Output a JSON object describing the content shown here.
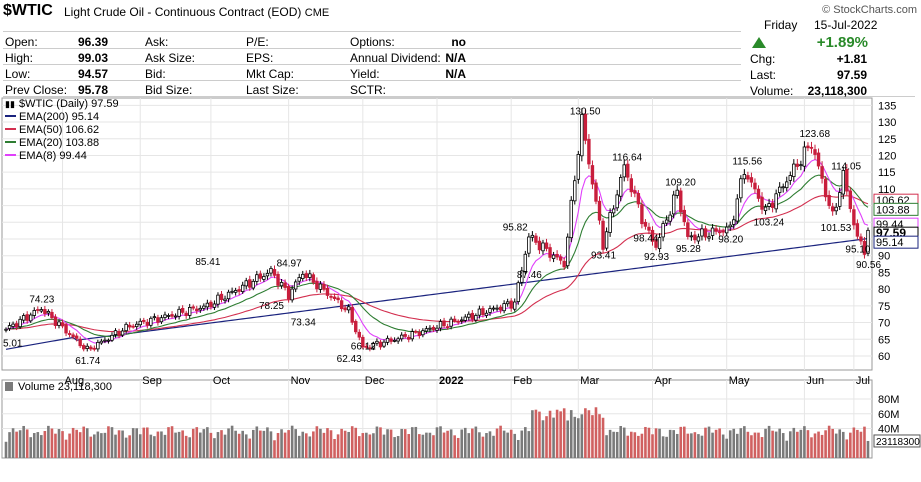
{
  "header": {
    "symbol": "$WTIC",
    "name": "Light Crude Oil - Continuous Contract (EOD)",
    "exchange": "CME",
    "source": "© StockCharts.com",
    "day": "Friday",
    "date": "15-Jul-2022",
    "change_pct": "+1.89%",
    "chg_label": "Chg:",
    "chg_value": "+1.81",
    "last_label": "Last:",
    "last_value": "97.59",
    "volume_label": "Volume:",
    "volume_value": "23,118,300"
  },
  "quote": {
    "open_label": "Open:",
    "open": "96.39",
    "high_label": "High:",
    "high": "99.03",
    "low_label": "Low:",
    "low": "94.57",
    "prev_label": "Prev Close:",
    "prev": "95.78",
    "ask_label": "Ask:",
    "ask": "",
    "asksize_label": "Ask Size:",
    "asksize": "",
    "bid_label": "Bid:",
    "bid": "",
    "bidsize_label": "Bid Size:",
    "bidsize": "",
    "pe_label": "P/E:",
    "eps_label": "EPS:",
    "mktcap_label": "Mkt Cap:",
    "lastsize_label": "Last Size:",
    "options_label": "Options:",
    "options": "no",
    "div_label": "Annual Dividend:",
    "div": "N/A",
    "yield_label": "Yield:",
    "yield": "N/A",
    "sctr_label": "SCTR:",
    "sctr": ""
  },
  "colors": {
    "up": "#2a8a2a",
    "down": "#c81e3c",
    "ema200": "#1a237e",
    "ema50": "#d32f4f",
    "ema20": "#2e7d32",
    "ema8": "#e040fb",
    "volume_up": "#7a7a7a",
    "volume_down": "#d06060"
  },
  "chart_data": [
    {
      "type": "line",
      "legend": [
        {
          "text": "$WTIC (Daily) 97.59",
          "key": "price"
        },
        {
          "text": "EMA(200) 95.14",
          "key": "ema200"
        },
        {
          "text": "EMA(50) 106.62",
          "key": "ema50"
        },
        {
          "text": "EMA(20) 103.88",
          "key": "ema20"
        },
        {
          "text": "EMA(8) 99.44",
          "key": "ema8"
        }
      ],
      "x_ticks": [
        "Aug",
        "Sep",
        "Oct",
        "Nov",
        "Dec",
        "2022",
        "Feb",
        "Mar",
        "Apr",
        "May",
        "Jun",
        "Jul"
      ],
      "y_ticks": [
        60,
        65,
        70,
        75,
        80,
        85,
        90,
        95,
        100,
        105,
        110,
        115,
        120,
        125,
        130,
        135
      ],
      "ylim": [
        57,
        136
      ],
      "grid": true,
      "price_key_points": [
        [
          "start",
          68
        ],
        [
          "Aug-01",
          74.23
        ],
        [
          "Aug-19",
          61.74
        ],
        [
          "Sep-01",
          69
        ],
        [
          "Oct-01",
          75
        ],
        [
          "Oct-25",
          85.41
        ],
        [
          "Nov-02",
          78.25
        ],
        [
          "Nov-09",
          84.97
        ],
        [
          "Nov-25",
          73.34
        ],
        [
          "Dec-01",
          62.43
        ],
        [
          "Dec-20",
          66.12
        ],
        [
          "Jan-01",
          76
        ],
        [
          "Feb-14",
          95.82
        ],
        [
          "Feb-20",
          87.46
        ],
        [
          "Mar-07",
          130.5
        ],
        [
          "Mar-15",
          93.41
        ],
        [
          "Mar-23",
          116.64
        ],
        [
          "Apr-01",
          98.44
        ],
        [
          "Apr-11",
          92.93
        ],
        [
          "Apr-18",
          109.2
        ],
        [
          "Apr-25",
          95.28
        ],
        [
          "May-10",
          98.2
        ],
        [
          "May-17",
          115.56
        ],
        [
          "May-25",
          103.24
        ],
        [
          "Jun-14",
          123.68
        ],
        [
          "Jun-22",
          101.53
        ],
        [
          "Jun-30",
          114.05
        ],
        [
          "Jul-06",
          95.1
        ],
        [
          "Jul-14",
          90.56
        ],
        [
          "Jul-15",
          97.59
        ]
      ],
      "annotations": [
        "74.23",
        "61.74",
        "85.41",
        "78.25",
        "84.97",
        "73.34",
        "62.43",
        "66.12",
        "95.82",
        "87.46",
        "130.50",
        "93.41",
        "116.64",
        "98.44",
        "92.93",
        "109.20",
        "95.28",
        "98.20",
        "115.56",
        "103.24",
        "123.68",
        "101.53",
        "114.05",
        "95.10",
        "90.56",
        "5.01"
      ],
      "right_labels": [
        {
          "value": 106.62,
          "text": "106.62",
          "series": "ema50"
        },
        {
          "value": 103.88,
          "text": "103.88",
          "series": "ema20"
        },
        {
          "value": 99.44,
          "text": "99.44",
          "series": "ema8"
        },
        {
          "value": 97.59,
          "text": "97.59",
          "series": "price"
        },
        {
          "value": 95.14,
          "text": "95.14",
          "series": "ema200"
        }
      ]
    },
    {
      "type": "bar",
      "title": "Volume 23,118,300",
      "y_ticks": [
        {
          "value": 80,
          "text": "80M"
        },
        {
          "value": 60,
          "text": "60M"
        },
        {
          "value": 40,
          "text": "40M"
        }
      ],
      "ylim": [
        0,
        95
      ],
      "last_label": "23118300"
    }
  ]
}
